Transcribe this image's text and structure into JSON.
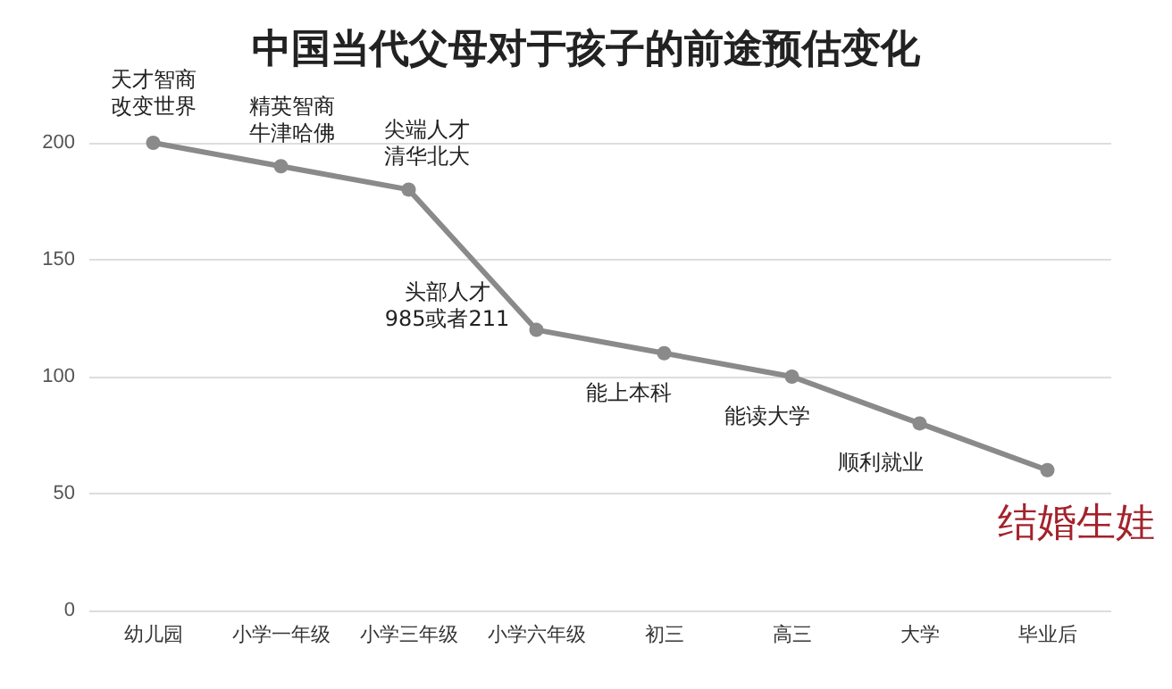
{
  "chart_data": {
    "type": "line",
    "title": "中国当代父母对于孩子的前途预估变化",
    "categories": [
      "幼儿园",
      "小学一年级",
      "小学三年级",
      "小学六年级",
      "初三",
      "高三",
      "大学",
      "毕业后"
    ],
    "values": [
      200,
      190,
      180,
      120,
      110,
      100,
      80,
      60
    ],
    "color": "#8a8a8a",
    "ylim": [
      0,
      200
    ],
    "yticks": [
      0,
      50,
      100,
      150,
      200
    ],
    "grid": "y",
    "marker": "circle",
    "line_style": "solid",
    "annotations": [
      {
        "text": "天才智商改变世界",
        "x": "幼儿园",
        "y": 200
      },
      {
        "text": "精英智商牛津哈佛",
        "x": "小学一年级",
        "y": 190
      },
      {
        "text": "尖端人才清华北大",
        "x": "小学三年级",
        "y": 180
      },
      {
        "text": "头部人才985或者211",
        "x": "小学六年级",
        "y": 120
      },
      {
        "text": "能上本科",
        "x": "初三",
        "y": 110
      },
      {
        "text": "能读大学",
        "x": "高三",
        "y": 100
      },
      {
        "text": "顺利就业",
        "x": "大学",
        "y": 80
      },
      {
        "text": "结婚生娃",
        "x": "毕业后",
        "y": 60
      }
    ]
  }
}
